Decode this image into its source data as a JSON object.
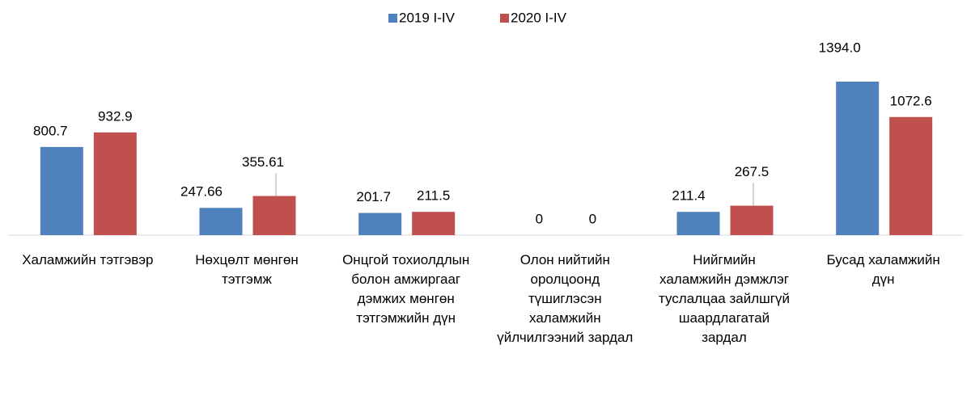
{
  "chart_data": {
    "type": "bar",
    "categories": [
      "Халамжийн тэтгэвэр",
      "Нөхцөлт мөнгөн тэтгэмж",
      "Онцгой тохиолдлын болон амжиргааг дэмжих мөнгөн тэтгэмжийн дүн",
      "Олон нийтийн оролцоонд түшиглэсэн халамжийн үйлчилгээний зардал",
      "Нийгмийн халамжийн дэмжлэг туслалцаа зайлшгүй шаардлагатай зардал",
      "Бусад халамжийн дүн"
    ],
    "series": [
      {
        "name": "2019 I-IV",
        "color": "#4f81bd",
        "values": [
          800.7,
          247.66,
          201.7,
          0,
          211.4,
          1394.0
        ],
        "value_labels": [
          "800.7",
          "247.66",
          "201.7",
          "0",
          "211.4",
          "1394.0"
        ]
      },
      {
        "name": "2020 I-IV",
        "color": "#c0504d",
        "values": [
          932.9,
          355.61,
          211.5,
          0,
          267.5,
          1072.6
        ]
      }
    ],
    "legend": "top"
  }
}
